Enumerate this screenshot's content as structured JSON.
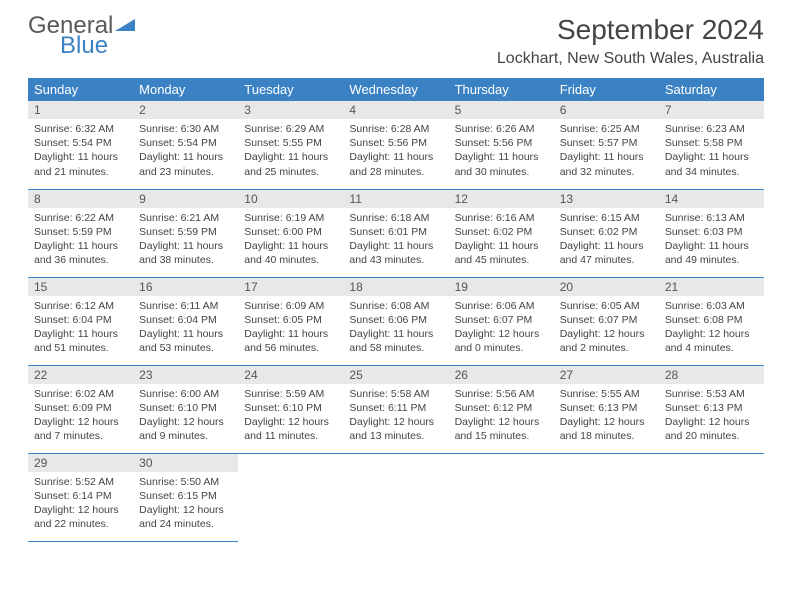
{
  "logo": {
    "word1": "General",
    "word2": "Blue"
  },
  "title": "September 2024",
  "subtitle": "Lockhart, New South Wales, Australia",
  "colors": {
    "header_bg": "#3b82c4",
    "header_text": "#ffffff",
    "daynum_bg": "#e8e8e8",
    "rule": "#3b82c4",
    "text": "#444444",
    "logo_gray": "#5a5a5a",
    "logo_blue": "#3b82c4"
  },
  "weekdays": [
    "Sunday",
    "Monday",
    "Tuesday",
    "Wednesday",
    "Thursday",
    "Friday",
    "Saturday"
  ],
  "weeks": [
    [
      {
        "day": "1",
        "sunrise": "Sunrise: 6:32 AM",
        "sunset": "Sunset: 5:54 PM",
        "daylight1": "Daylight: 11 hours",
        "daylight2": "and 21 minutes."
      },
      {
        "day": "2",
        "sunrise": "Sunrise: 6:30 AM",
        "sunset": "Sunset: 5:54 PM",
        "daylight1": "Daylight: 11 hours",
        "daylight2": "and 23 minutes."
      },
      {
        "day": "3",
        "sunrise": "Sunrise: 6:29 AM",
        "sunset": "Sunset: 5:55 PM",
        "daylight1": "Daylight: 11 hours",
        "daylight2": "and 25 minutes."
      },
      {
        "day": "4",
        "sunrise": "Sunrise: 6:28 AM",
        "sunset": "Sunset: 5:56 PM",
        "daylight1": "Daylight: 11 hours",
        "daylight2": "and 28 minutes."
      },
      {
        "day": "5",
        "sunrise": "Sunrise: 6:26 AM",
        "sunset": "Sunset: 5:56 PM",
        "daylight1": "Daylight: 11 hours",
        "daylight2": "and 30 minutes."
      },
      {
        "day": "6",
        "sunrise": "Sunrise: 6:25 AM",
        "sunset": "Sunset: 5:57 PM",
        "daylight1": "Daylight: 11 hours",
        "daylight2": "and 32 minutes."
      },
      {
        "day": "7",
        "sunrise": "Sunrise: 6:23 AM",
        "sunset": "Sunset: 5:58 PM",
        "daylight1": "Daylight: 11 hours",
        "daylight2": "and 34 minutes."
      }
    ],
    [
      {
        "day": "8",
        "sunrise": "Sunrise: 6:22 AM",
        "sunset": "Sunset: 5:59 PM",
        "daylight1": "Daylight: 11 hours",
        "daylight2": "and 36 minutes."
      },
      {
        "day": "9",
        "sunrise": "Sunrise: 6:21 AM",
        "sunset": "Sunset: 5:59 PM",
        "daylight1": "Daylight: 11 hours",
        "daylight2": "and 38 minutes."
      },
      {
        "day": "10",
        "sunrise": "Sunrise: 6:19 AM",
        "sunset": "Sunset: 6:00 PM",
        "daylight1": "Daylight: 11 hours",
        "daylight2": "and 40 minutes."
      },
      {
        "day": "11",
        "sunrise": "Sunrise: 6:18 AM",
        "sunset": "Sunset: 6:01 PM",
        "daylight1": "Daylight: 11 hours",
        "daylight2": "and 43 minutes."
      },
      {
        "day": "12",
        "sunrise": "Sunrise: 6:16 AM",
        "sunset": "Sunset: 6:02 PM",
        "daylight1": "Daylight: 11 hours",
        "daylight2": "and 45 minutes."
      },
      {
        "day": "13",
        "sunrise": "Sunrise: 6:15 AM",
        "sunset": "Sunset: 6:02 PM",
        "daylight1": "Daylight: 11 hours",
        "daylight2": "and 47 minutes."
      },
      {
        "day": "14",
        "sunrise": "Sunrise: 6:13 AM",
        "sunset": "Sunset: 6:03 PM",
        "daylight1": "Daylight: 11 hours",
        "daylight2": "and 49 minutes."
      }
    ],
    [
      {
        "day": "15",
        "sunrise": "Sunrise: 6:12 AM",
        "sunset": "Sunset: 6:04 PM",
        "daylight1": "Daylight: 11 hours",
        "daylight2": "and 51 minutes."
      },
      {
        "day": "16",
        "sunrise": "Sunrise: 6:11 AM",
        "sunset": "Sunset: 6:04 PM",
        "daylight1": "Daylight: 11 hours",
        "daylight2": "and 53 minutes."
      },
      {
        "day": "17",
        "sunrise": "Sunrise: 6:09 AM",
        "sunset": "Sunset: 6:05 PM",
        "daylight1": "Daylight: 11 hours",
        "daylight2": "and 56 minutes."
      },
      {
        "day": "18",
        "sunrise": "Sunrise: 6:08 AM",
        "sunset": "Sunset: 6:06 PM",
        "daylight1": "Daylight: 11 hours",
        "daylight2": "and 58 minutes."
      },
      {
        "day": "19",
        "sunrise": "Sunrise: 6:06 AM",
        "sunset": "Sunset: 6:07 PM",
        "daylight1": "Daylight: 12 hours",
        "daylight2": "and 0 minutes."
      },
      {
        "day": "20",
        "sunrise": "Sunrise: 6:05 AM",
        "sunset": "Sunset: 6:07 PM",
        "daylight1": "Daylight: 12 hours",
        "daylight2": "and 2 minutes."
      },
      {
        "day": "21",
        "sunrise": "Sunrise: 6:03 AM",
        "sunset": "Sunset: 6:08 PM",
        "daylight1": "Daylight: 12 hours",
        "daylight2": "and 4 minutes."
      }
    ],
    [
      {
        "day": "22",
        "sunrise": "Sunrise: 6:02 AM",
        "sunset": "Sunset: 6:09 PM",
        "daylight1": "Daylight: 12 hours",
        "daylight2": "and 7 minutes."
      },
      {
        "day": "23",
        "sunrise": "Sunrise: 6:00 AM",
        "sunset": "Sunset: 6:10 PM",
        "daylight1": "Daylight: 12 hours",
        "daylight2": "and 9 minutes."
      },
      {
        "day": "24",
        "sunrise": "Sunrise: 5:59 AM",
        "sunset": "Sunset: 6:10 PM",
        "daylight1": "Daylight: 12 hours",
        "daylight2": "and 11 minutes."
      },
      {
        "day": "25",
        "sunrise": "Sunrise: 5:58 AM",
        "sunset": "Sunset: 6:11 PM",
        "daylight1": "Daylight: 12 hours",
        "daylight2": "and 13 minutes."
      },
      {
        "day": "26",
        "sunrise": "Sunrise: 5:56 AM",
        "sunset": "Sunset: 6:12 PM",
        "daylight1": "Daylight: 12 hours",
        "daylight2": "and 15 minutes."
      },
      {
        "day": "27",
        "sunrise": "Sunrise: 5:55 AM",
        "sunset": "Sunset: 6:13 PM",
        "daylight1": "Daylight: 12 hours",
        "daylight2": "and 18 minutes."
      },
      {
        "day": "28",
        "sunrise": "Sunrise: 5:53 AM",
        "sunset": "Sunset: 6:13 PM",
        "daylight1": "Daylight: 12 hours",
        "daylight2": "and 20 minutes."
      }
    ],
    [
      {
        "day": "29",
        "sunrise": "Sunrise: 5:52 AM",
        "sunset": "Sunset: 6:14 PM",
        "daylight1": "Daylight: 12 hours",
        "daylight2": "and 22 minutes."
      },
      {
        "day": "30",
        "sunrise": "Sunrise: 5:50 AM",
        "sunset": "Sunset: 6:15 PM",
        "daylight1": "Daylight: 12 hours",
        "daylight2": "and 24 minutes."
      },
      null,
      null,
      null,
      null,
      null
    ]
  ]
}
